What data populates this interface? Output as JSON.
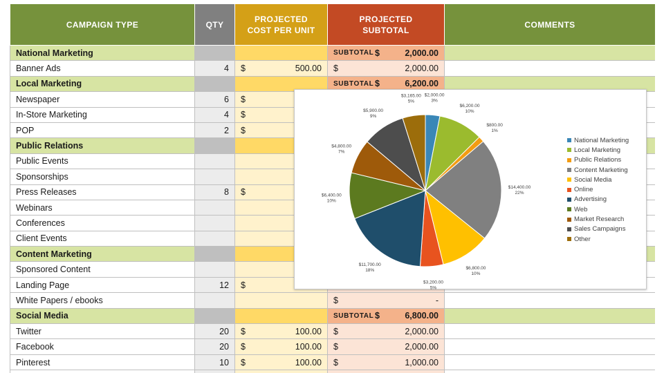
{
  "columns": {
    "type": "CAMPAIGN TYPE",
    "qty": "QTY",
    "cost": [
      "PROJECTED",
      "COST PER UNIT"
    ],
    "subtotal": [
      "PROJECTED",
      "SUBTOTAL"
    ],
    "comments": "COMMENTS"
  },
  "subtotal_label": "SUBTOTAL",
  "currency": "$",
  "rows": [
    {
      "kind": "cat",
      "name": "National Marketing",
      "subtotal": "2,000.00"
    },
    {
      "kind": "item",
      "name": "Banner Ads",
      "qty": "4",
      "cost": "500.00",
      "subtotal": "2,000.00"
    },
    {
      "kind": "cat",
      "name": "Local Marketing",
      "subtotal": "6,200.00"
    },
    {
      "kind": "item",
      "name": "Newspaper",
      "qty": "6",
      "cost": "",
      "subtotal": ""
    },
    {
      "kind": "item",
      "name": "In-Store Marketing",
      "qty": "4",
      "cost": "",
      "subtotal": ""
    },
    {
      "kind": "item",
      "name": "POP",
      "qty": "2",
      "cost": "",
      "subtotal": ""
    },
    {
      "kind": "cat",
      "name": "Public Relations",
      "subtotal": ""
    },
    {
      "kind": "item",
      "name": "Public Events",
      "qty": "",
      "cost": null,
      "subtotal": null
    },
    {
      "kind": "item",
      "name": "Sponsorships",
      "qty": "",
      "cost": null,
      "subtotal": null
    },
    {
      "kind": "item",
      "name": "Press Releases",
      "qty": "8",
      "cost": "",
      "subtotal": ""
    },
    {
      "kind": "item",
      "name": "Webinars",
      "qty": "",
      "cost": null,
      "subtotal": null
    },
    {
      "kind": "item",
      "name": "Conferences",
      "qty": "",
      "cost": null,
      "subtotal": null
    },
    {
      "kind": "item",
      "name": "Client Events",
      "qty": "",
      "cost": null,
      "subtotal": null
    },
    {
      "kind": "cat",
      "name": "Content Marketing",
      "subtotal": ""
    },
    {
      "kind": "item",
      "name": "Sponsored Content",
      "qty": "",
      "cost": null,
      "subtotal": null
    },
    {
      "kind": "item",
      "name": "Landing Page",
      "qty": "12",
      "cost": "",
      "subtotal": ""
    },
    {
      "kind": "item",
      "name": "White Papers / ebooks",
      "qty": "",
      "cost": null,
      "subtotal": "-"
    },
    {
      "kind": "cat",
      "name": "Social Media",
      "subtotal": "6,800.00"
    },
    {
      "kind": "item",
      "name": "Twitter",
      "qty": "20",
      "cost": "100.00",
      "subtotal": "2,000.00"
    },
    {
      "kind": "item",
      "name": "Facebook",
      "qty": "20",
      "cost": "100.00",
      "subtotal": "2,000.00"
    },
    {
      "kind": "item",
      "name": "Pinterest",
      "qty": "10",
      "cost": "100.00",
      "subtotal": "1,000.00"
    },
    {
      "kind": "item",
      "name": "",
      "qty": "",
      "cost": null,
      "subtotal": null
    }
  ],
  "chart_data": {
    "type": "pie",
    "title": "",
    "legend_position": "right",
    "categories": [
      "National Marketing",
      "Local Marketing",
      "Public Relations",
      "Content Marketing",
      "Social Media",
      "Online",
      "Advertising",
      "Web",
      "Market Research",
      "Sales Campaigns",
      "Other"
    ],
    "values": [
      2000,
      6200,
      800,
      14400,
      6800,
      3200,
      11700,
      6400,
      4800,
      5900,
      3165
    ],
    "value_labels": [
      "$2,000.00",
      "$6,200.00",
      "$800.00",
      "$14,400.00",
      "$6,800.00",
      "$3,200.00",
      "$11,700.00",
      "$6,400.00",
      "$4,800.00",
      "$5,900.00",
      "$3,165.00"
    ],
    "percent_labels": [
      "3%",
      "10%",
      "1%",
      "22%",
      "10%",
      "5%",
      "18%",
      "10%",
      "7%",
      "9%",
      "5%"
    ],
    "colors": [
      "#3a87b7",
      "#9bbb2e",
      "#f39c12",
      "#808080",
      "#ffc000",
      "#e8531f",
      "#1f4e6b",
      "#5c7a1f",
      "#9e5a0a",
      "#4d4d4d",
      "#9c6d0b"
    ]
  }
}
